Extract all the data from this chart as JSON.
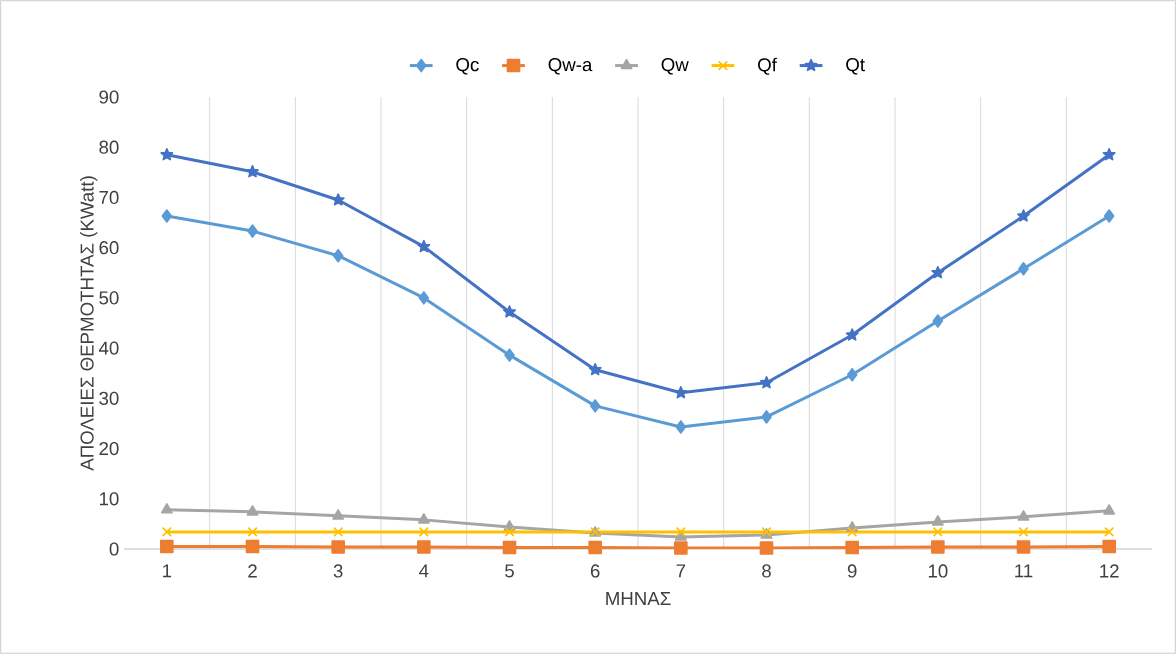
{
  "chart_data": {
    "type": "line",
    "xlabel": "ΜΗΝΑΣ",
    "ylabel": "ΑΠΟΛΕΙΕΣ ΘΕΡΜΟΤΗΤΑΣ (KWatt)",
    "categories": [
      "1",
      "2",
      "3",
      "4",
      "5",
      "6",
      "7",
      "8",
      "9",
      "10",
      "11",
      "12"
    ],
    "series": [
      {
        "name": "Qc",
        "color": "#5b9bd5",
        "marker": "diamond",
        "values": [
          66.3,
          63.3,
          58.4,
          50.0,
          38.6,
          28.5,
          24.3,
          26.3,
          34.7,
          45.4,
          55.8,
          66.3
        ]
      },
      {
        "name": "Qw-a",
        "color": "#ed7d31",
        "marker": "square",
        "values": [
          0.5,
          0.5,
          0.4,
          0.4,
          0.3,
          0.3,
          0.2,
          0.2,
          0.3,
          0.4,
          0.4,
          0.5
        ]
      },
      {
        "name": "Qw",
        "color": "#a5a5a5",
        "marker": "triangle",
        "values": [
          7.8,
          7.4,
          6.6,
          5.8,
          4.4,
          3.2,
          2.4,
          2.8,
          4.2,
          5.4,
          6.4,
          7.6
        ]
      },
      {
        "name": "Qf",
        "color": "#ffc000",
        "marker": "cross",
        "values": [
          3.4,
          3.4,
          3.4,
          3.4,
          3.4,
          3.4,
          3.4,
          3.4,
          3.4,
          3.4,
          3.4,
          3.4
        ]
      },
      {
        "name": "Qt",
        "color": "#4472c4",
        "marker": "star",
        "values": [
          78.5,
          75.1,
          69.5,
          60.2,
          47.2,
          35.7,
          31.1,
          33.1,
          42.6,
          55.0,
          66.3,
          78.5
        ]
      }
    ],
    "ylim": [
      0,
      90
    ],
    "yticks": [
      0,
      10,
      20,
      30,
      40,
      50,
      60,
      70,
      80,
      90
    ],
    "grid": "x",
    "legend": "top",
    "line_style": "solid"
  }
}
